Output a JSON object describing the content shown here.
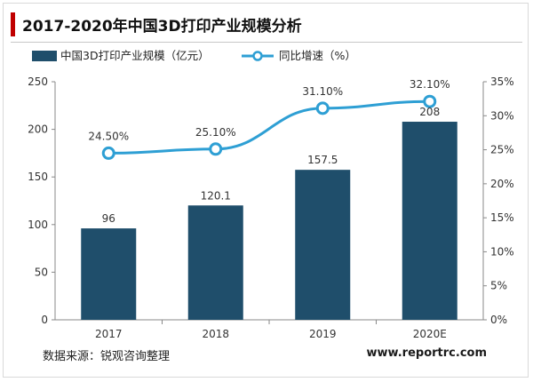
{
  "header": {
    "title": "2017-2020年中国3D打印产业规模分析"
  },
  "chart_data": {
    "type": "bar",
    "categories": [
      "2017",
      "2018",
      "2019",
      "2020E"
    ],
    "series": [
      {
        "name": "中国3D打印产业规模（亿元）",
        "type": "bar",
        "axis": "left",
        "values": [
          96,
          120.1,
          157.5,
          208
        ],
        "labels": [
          "96",
          "120.1",
          "157.5",
          "208"
        ],
        "color": "#1f4e6b"
      },
      {
        "name": "同比增速（%）",
        "type": "line",
        "axis": "right",
        "values": [
          24.5,
          25.1,
          31.1,
          32.1
        ],
        "labels": [
          "24.50%",
          "25.10%",
          "31.10%",
          "32.10%"
        ],
        "color": "#2e9fd4",
        "smooth": true
      }
    ],
    "y_left": {
      "min": 0,
      "max": 250,
      "ticks": [
        "0",
        "50",
        "100",
        "150",
        "200",
        "250"
      ]
    },
    "y_right": {
      "min": 0,
      "max": 35,
      "ticks": [
        "0%",
        "5%",
        "10%",
        "15%",
        "20%",
        "25%",
        "30%",
        "35%"
      ]
    },
    "legend": "top",
    "grid": false
  },
  "footer": {
    "source": "数据来源：锐观咨询整理",
    "website": "www.reportrc.com"
  }
}
